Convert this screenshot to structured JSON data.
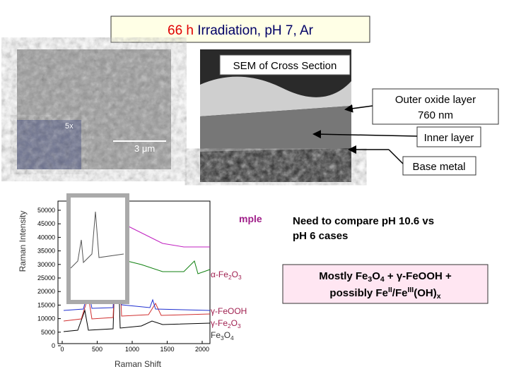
{
  "title": {
    "highlight": "66 h",
    "rest": "Irradiation, pH 7, Ar"
  },
  "surface_image": {
    "inset_label": "5x",
    "scale_bar": "3 μm"
  },
  "cross_section": {
    "label": "SEM of Cross Section",
    "callouts": [
      [
        "Outer oxide layer",
        "760 nm"
      ],
      [
        "Inner layer"
      ],
      [
        "Base metal"
      ]
    ]
  },
  "raman": {
    "y_label": "Raman Intensity",
    "x_label": "Raman Shift",
    "yticks": [
      "0",
      "5000",
      "10000",
      "15000",
      "20000",
      "25000",
      "30000",
      "35000",
      "40000",
      "45000",
      "50000"
    ],
    "xticks": [
      "0",
      "500",
      "1000",
      "1500",
      "2000"
    ],
    "sample_fragment": "mple",
    "legend": [
      [
        "α-Fe",
        "2",
        "O",
        "3"
      ],
      [
        "γ-FeOOH"
      ],
      [
        "γ-Fe",
        "2",
        "O",
        "3"
      ],
      [
        "Fe",
        "3",
        "O",
        "4"
      ]
    ]
  },
  "note": [
    "Need to compare pH 10.6 vs",
    "pH 6 cases"
  ],
  "conclusion": {
    "line1": [
      "Mostly Fe",
      "3",
      "O",
      "4",
      " + γ-FeOOH +"
    ],
    "line2": [
      "possibly Fe",
      "II",
      "/Fe",
      "III",
      "(OH)",
      "x"
    ]
  }
}
